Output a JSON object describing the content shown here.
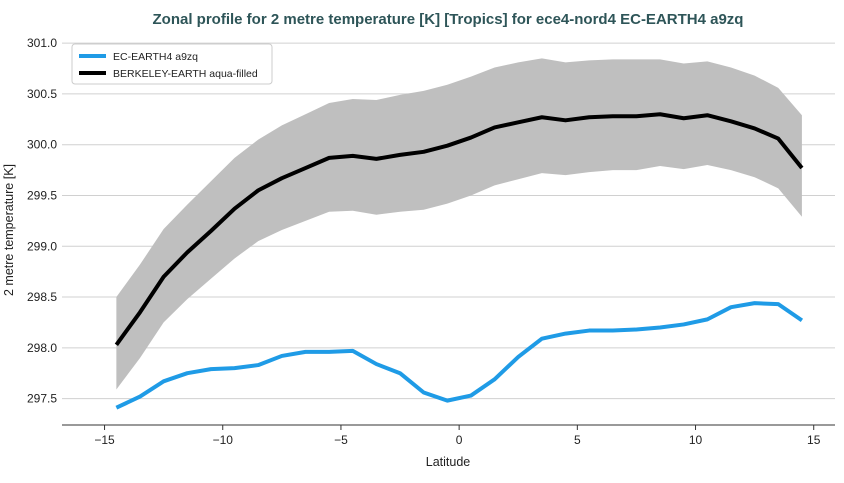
{
  "chart_data": {
    "type": "line",
    "title": "Zonal profile for 2 metre temperature [K] [Tropics] for ece4-nord4 EC-EARTH4 a9zq",
    "xlabel": "Latitude",
    "ylabel": "2 metre temperature [K]",
    "xlim": [
      -16.8,
      15.9
    ],
    "ylim": [
      297.24,
      301.08
    ],
    "xticks": [
      -15,
      -10,
      -5,
      0,
      5,
      10,
      15
    ],
    "xtick_labels": [
      "−15",
      "−10",
      "−5",
      "0",
      "5",
      "10",
      "15"
    ],
    "yticks": [
      297.5,
      298.0,
      298.5,
      299.0,
      299.5,
      300.0,
      300.5,
      301.0
    ],
    "ytick_labels": [
      "297.5",
      "298.0",
      "298.5",
      "299.0",
      "299.5",
      "300.0",
      "300.5",
      "301.0"
    ],
    "grid": "horizontal",
    "legend_placement": "top-left",
    "x": [
      -14.5,
      -13.5,
      -12.5,
      -11.5,
      -10.5,
      -9.5,
      -8.5,
      -7.5,
      -6.5,
      -5.5,
      -4.5,
      -3.5,
      -2.5,
      -1.5,
      -0.5,
      0.5,
      1.5,
      2.5,
      3.5,
      4.5,
      5.5,
      6.5,
      7.5,
      8.5,
      9.5,
      10.5,
      11.5,
      12.5,
      13.5,
      14.5
    ],
    "series": [
      {
        "name": "EC-EARTH4 a9zq",
        "color": "#1f9be6",
        "values": [
          297.41,
          297.52,
          297.67,
          297.75,
          297.79,
          297.8,
          297.83,
          297.92,
          297.96,
          297.96,
          297.97,
          297.84,
          297.75,
          297.56,
          297.48,
          297.53,
          297.69,
          297.91,
          298.09,
          298.14,
          298.17,
          298.17,
          298.18,
          298.2,
          298.23,
          298.28,
          298.4,
          298.44,
          298.43,
          298.27
        ]
      },
      {
        "name": "BERKELEY-EARTH aqua-filled",
        "color": "#000000",
        "values": [
          298.03,
          298.35,
          298.7,
          298.94,
          299.15,
          299.37,
          299.55,
          299.67,
          299.77,
          299.87,
          299.89,
          299.86,
          299.9,
          299.93,
          299.99,
          300.07,
          300.17,
          300.22,
          300.27,
          300.24,
          300.27,
          300.28,
          300.28,
          300.3,
          300.26,
          300.29,
          300.23,
          300.16,
          300.06,
          299.77
        ]
      }
    ],
    "band": {
      "color": "#bfbfbf",
      "upper": [
        298.5,
        298.82,
        299.17,
        299.41,
        299.64,
        299.87,
        300.05,
        300.19,
        300.3,
        300.41,
        300.45,
        300.44,
        300.49,
        300.53,
        300.59,
        300.67,
        300.76,
        300.81,
        300.85,
        300.81,
        300.83,
        300.84,
        300.84,
        300.84,
        300.8,
        300.82,
        300.76,
        300.68,
        300.56,
        300.29
      ],
      "lower": [
        297.59,
        297.9,
        298.25,
        298.48,
        298.68,
        298.88,
        299.05,
        299.16,
        299.25,
        299.34,
        299.35,
        299.31,
        299.34,
        299.36,
        299.42,
        299.5,
        299.6,
        299.66,
        299.72,
        299.7,
        299.73,
        299.75,
        299.75,
        299.79,
        299.76,
        299.8,
        299.75,
        299.68,
        299.57,
        299.29
      ]
    },
    "title_color": "#2e5558"
  }
}
